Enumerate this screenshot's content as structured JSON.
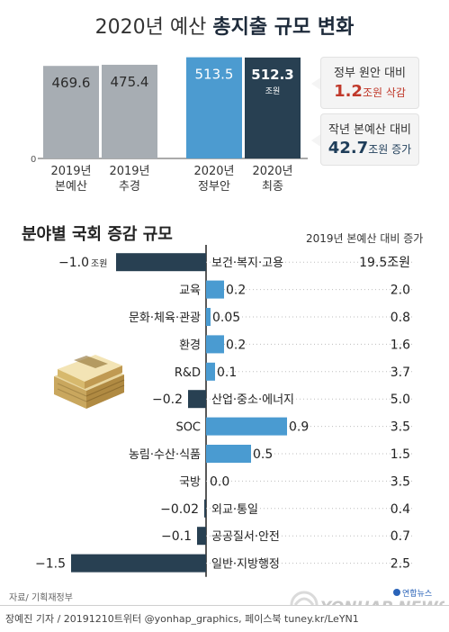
{
  "title": {
    "prefix": "2020년 예산",
    "highlight": "총지출 규모 변화"
  },
  "top_chart": {
    "axis_zero": "0",
    "unit": "조원",
    "callouts": [
      {
        "label": "정부 원안 대비",
        "value": "1.2",
        "unit_text": "조원 삭감",
        "color": "#c0392b"
      },
      {
        "label": "작년 본예산 대비",
        "value": "42.7",
        "unit_text": "조원 증가",
        "color": "#1f3e5a"
      }
    ]
  },
  "section2": {
    "title": "분야별 국회 증감 규모",
    "subtitle": "2019년 본예산 대비 증가",
    "first_label_unit": "조원"
  },
  "source": "자료/ 기획재정부",
  "credit": "장예진 기자 / 20191210트위터 @yonhap_graphics, 페이스북 tuney.kr/LeYN1",
  "logo": {
    "brand": "연합뉴스",
    "text": "YONHAP NEWS"
  },
  "colors": {
    "bar_gray": "#a7adb3",
    "bar_blue": "#4c9bd0",
    "bar_dark": "#284052",
    "pos_bar": "#4a9bd1",
    "neg_bar": "#284052"
  },
  "chart_data": [
    {
      "type": "bar",
      "title": "2020년 예산 총지출 규모 변화",
      "categories": [
        "2019년\n본예산",
        "2019년\n추경",
        "2020년\n정부안",
        "2020년\n최종"
      ],
      "values": [
        469.6,
        475.4,
        513.5,
        512.3
      ],
      "value_labels": [
        "469.6",
        "475.4",
        "513.5",
        "512.3"
      ],
      "ylim": [
        0,
        530
      ],
      "colors": [
        "#a7adb3",
        "#a7adb3",
        "#4c9bd0",
        "#284052"
      ]
    },
    {
      "type": "bar",
      "orientation": "horizontal",
      "title": "분야별 국회 증감 규모",
      "categories": [
        "보건·복지·고용",
        "교육",
        "문화·체육·관광",
        "환경",
        "R&D",
        "산업·중소·에너지",
        "SOC",
        "농림·수산·식품",
        "국방",
        "외교·통일",
        "공공질서·안전",
        "일반·지방행정"
      ],
      "values": [
        -1.0,
        0.2,
        0.05,
        0.2,
        0.1,
        -0.2,
        0.9,
        0.5,
        0.0,
        -0.02,
        -0.1,
        -1.5
      ],
      "value_labels": [
        "−1.0",
        "0.2",
        "0.05",
        "0.2",
        "0.1",
        "−0.2",
        "0.9",
        "0.5",
        "0.0",
        "−0.02",
        "−0.1",
        "−1.5"
      ],
      "secondary_label": "2019년 본예산 대비 증가",
      "secondary_values": [
        19.5,
        2.0,
        0.8,
        1.6,
        3.7,
        5.0,
        3.5,
        1.5,
        3.5,
        0.4,
        0.7,
        2.5
      ],
      "secondary_labels": [
        "19.5조원",
        "2.0",
        "0.8",
        "1.6",
        "3.7",
        "5.0",
        "3.5",
        "1.5",
        "3.5",
        "0.4",
        "0.7",
        "2.5"
      ]
    }
  ]
}
